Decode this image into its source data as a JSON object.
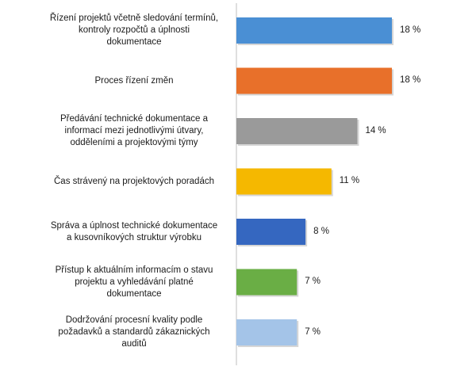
{
  "chart_data": {
    "type": "bar",
    "orientation": "horizontal",
    "categories": [
      "Řízení projektů včetně sledování termínů, kontroly rozpočtů a úplnosti dokumentace",
      "Proces řízení změn",
      "Předávání technické dokumentace a informací mezi jednotlivými útvary, odděleními a projektovými týmy",
      "Čas strávený na projektových poradách",
      "Správa a úplnost technické dokumentace a kusovníkových struktur výrobku",
      "Přístup k aktuálním informacím o stavu projektu a vyhledávání platné dokumentace",
      "Dodržování procesní kvality podle požadavků a standardů zákaznických auditů"
    ],
    "category_lines": [
      [
        "Řízení projektů včetně sledování termínů,",
        "kontroly rozpočtů a úplnosti",
        "dokumentace"
      ],
      [
        "Proces řízení změn"
      ],
      [
        "Předávání technické dokumentace a",
        "informací mezi jednotlivými útvary,",
        "odděleními a projektovými týmy"
      ],
      [
        "Čas strávený na projektových poradách"
      ],
      [
        "Správa a úplnost technické dokumentace",
        "a kusovníkových struktur výrobku"
      ],
      [
        "Přístup k aktuálním informacím o stavu",
        "projektu a vyhledávání platné",
        "dokumentace"
      ],
      [
        "Dodržování procesní kvality podle",
        "požadavků a standardů zákaznických",
        "auditů"
      ]
    ],
    "values": [
      18,
      18,
      14,
      11,
      8,
      7,
      7
    ],
    "value_labels": [
      "18 %",
      "18 %",
      "14 %",
      "11 %",
      "8 %",
      "7 %",
      "7 %"
    ],
    "bar_colors": [
      "#4a8fd4",
      "#e8702a",
      "#9a9a9a",
      "#f5b800",
      "#3567c0",
      "#6aae45",
      "#a4c4e8"
    ],
    "xlim": [
      0,
      18
    ],
    "grid": false,
    "legend": "none",
    "title": "",
    "xlabel": "",
    "ylabel": ""
  }
}
